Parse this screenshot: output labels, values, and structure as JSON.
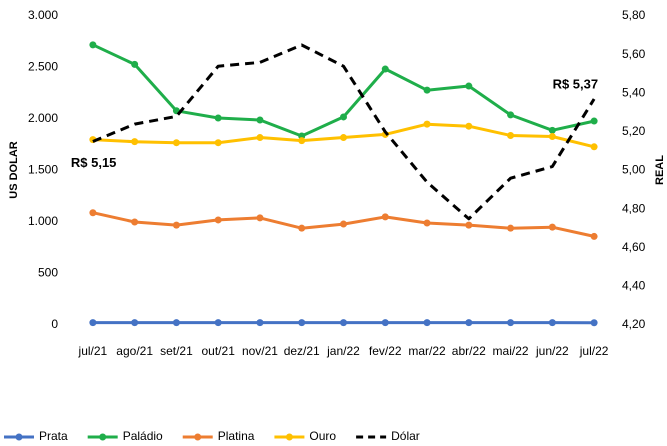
{
  "chart_data": {
    "type": "line",
    "categories": [
      "jul/21",
      "ago/21",
      "set/21",
      "out/21",
      "nov/21",
      "dez/21",
      "jan/22",
      "fev/22",
      "mar/22",
      "abr/22",
      "mai/22",
      "jun/22",
      "jul/22"
    ],
    "ylabel": "US DOLAR",
    "y2label": "REAL",
    "ylim": [
      0,
      3000
    ],
    "yticks": [
      0,
      500,
      {
        "value": 1000,
        "label": "1.000"
      },
      {
        "value": 1500,
        "label": "1.500"
      },
      {
        "value": 2000,
        "label": "2.000"
      },
      {
        "value": 2500,
        "label": "2.500"
      },
      {
        "value": 3000,
        "label": "3.000"
      }
    ],
    "y2lim": [
      4.2,
      5.8
    ],
    "y2ticks": [
      {
        "value": 4.2,
        "label": "4,20"
      },
      {
        "value": 4.4,
        "label": "4,40"
      },
      {
        "value": 4.6,
        "label": "4,60"
      },
      {
        "value": 4.8,
        "label": "4,80"
      },
      {
        "value": 5.0,
        "label": "5,00"
      },
      {
        "value": 5.2,
        "label": "5,20"
      },
      {
        "value": 5.4,
        "label": "5,40"
      },
      {
        "value": 5.6,
        "label": "5,60"
      },
      {
        "value": 5.8,
        "label": "5,80"
      }
    ],
    "grid": false,
    "legend": "bottom",
    "series": [
      {
        "name": "Prata",
        "color": "#4472c4",
        "values": [
          23,
          23,
          23,
          23,
          23,
          23,
          23,
          23,
          23,
          23,
          23,
          23,
          22
        ]
      },
      {
        "name": "Paládio",
        "color": "#1fae4a",
        "values": [
          2720,
          2530,
          2080,
          2010,
          1990,
          1835,
          2020,
          2485,
          2280,
          2320,
          2040,
          1890,
          1980
        ]
      },
      {
        "name": "Platina",
        "color": "#ed7d31",
        "values": [
          1090,
          1000,
          970,
          1020,
          1040,
          940,
          980,
          1050,
          990,
          970,
          940,
          950,
          860
        ]
      },
      {
        "name": "Ouro",
        "color": "#ffc000",
        "values": [
          1800,
          1780,
          1770,
          1770,
          1820,
          1790,
          1820,
          1850,
          1950,
          1930,
          1840,
          1830,
          1730
        ]
      },
      {
        "name": "Dólar",
        "color": "#000000",
        "axis": "y2",
        "line_style": "dashed",
        "values": [
          5.15,
          5.24,
          5.28,
          5.54,
          5.56,
          5.65,
          5.54,
          5.2,
          4.94,
          4.75,
          4.96,
          5.02,
          5.37
        ]
      }
    ],
    "annotations": [
      "R$ 5,15",
      "R$ 5,37"
    ]
  }
}
